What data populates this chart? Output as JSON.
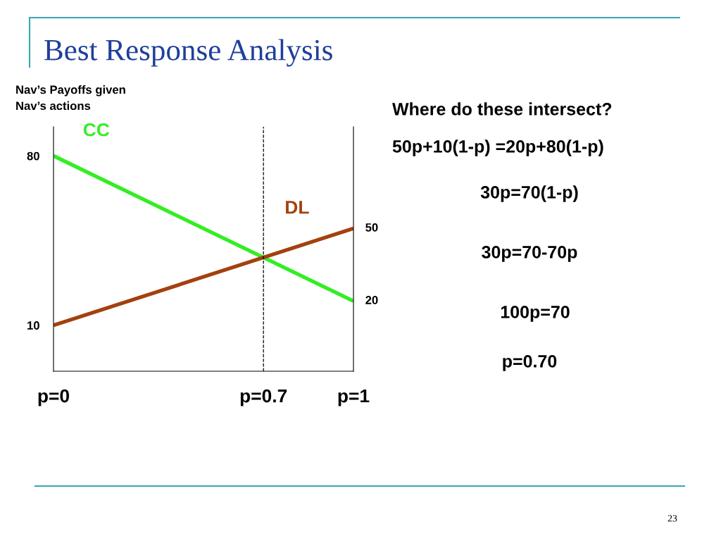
{
  "chart_data": {
    "type": "line",
    "title": "Best Response Analysis",
    "x": [
      0,
      1
    ],
    "xlim": [
      0,
      1
    ],
    "xticks": [
      {
        "value": 0,
        "label": "p=0"
      },
      {
        "value": 0.7,
        "label": "p=0.7"
      },
      {
        "value": 1,
        "label": "p=1"
      }
    ],
    "ylim": [
      -9,
      92
    ],
    "yticks": [
      10,
      80
    ],
    "series": [
      {
        "name": "CC",
        "color": "#33ee22",
        "values": [
          80,
          20
        ]
      },
      {
        "name": "DL",
        "color": "#a3410f",
        "values": [
          10,
          50
        ]
      }
    ],
    "ref_lines": [
      {
        "axis": "x",
        "value": 0.7,
        "line_style": "dashed",
        "color": "#000000"
      }
    ],
    "annotations": [
      "Nav’s Payoffs given\nNav’s actions",
      "Where do these intersect?",
      "50p+10(1-p) =20p+80(1-p)",
      "30p=70(1-p)",
      "30p=70-70p",
      "100p=70",
      "p=0.70",
      "23",
      {
        "text": "50",
        "x": 1,
        "y": 50
      },
      {
        "text": "20",
        "x": 1,
        "y": 20
      }
    ],
    "grid": false,
    "legend": false
  }
}
